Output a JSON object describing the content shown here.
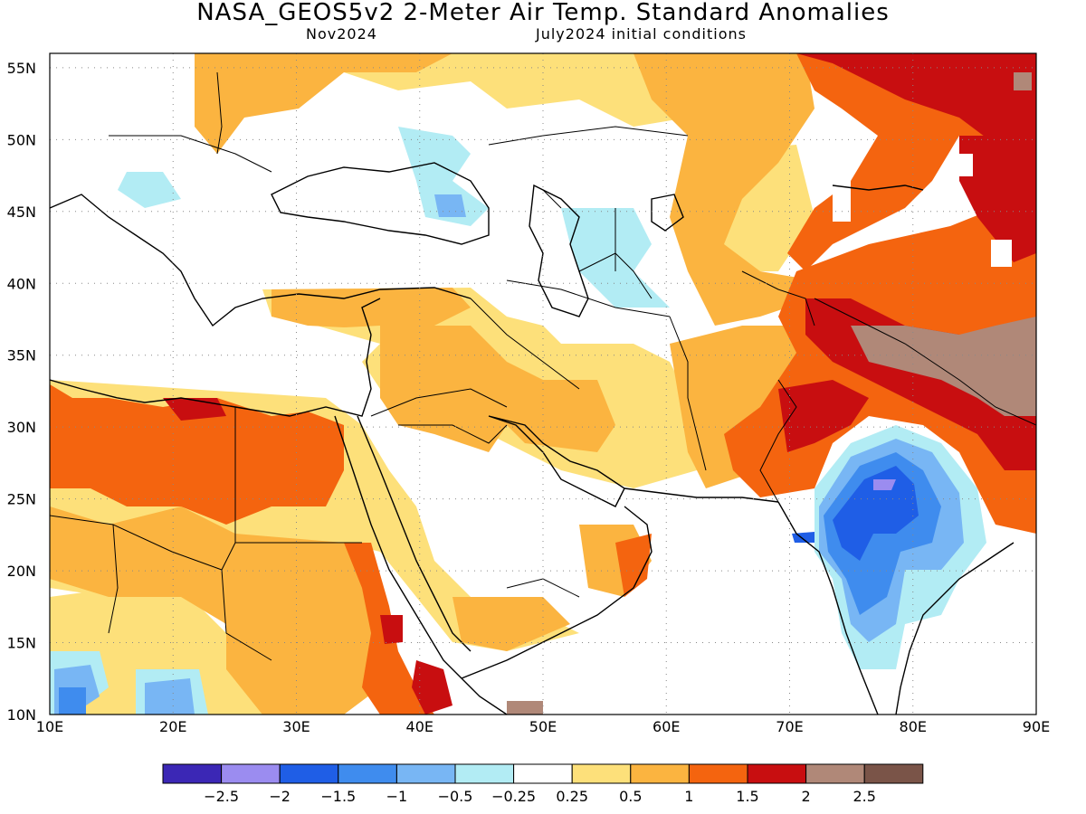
{
  "title": "NASA_GEOS5v2 2-Meter Air Temp. Standard Anomalies",
  "subtitle_left": "Nov2024",
  "subtitle_right": "July2024 initial conditions",
  "map": {
    "lon_range": [
      10,
      90
    ],
    "lat_range": [
      10,
      56
    ],
    "lon_ticks": [
      {
        "value": 10,
        "label": "10E"
      },
      {
        "value": 20,
        "label": "20E"
      },
      {
        "value": 30,
        "label": "30E"
      },
      {
        "value": 40,
        "label": "40E"
      },
      {
        "value": 50,
        "label": "50E"
      },
      {
        "value": 60,
        "label": "60E"
      },
      {
        "value": 70,
        "label": "70E"
      },
      {
        "value": 80,
        "label": "80E"
      },
      {
        "value": 90,
        "label": "90E"
      }
    ],
    "lat_ticks": [
      {
        "value": 10,
        "label": "10N"
      },
      {
        "value": 15,
        "label": "15N"
      },
      {
        "value": 20,
        "label": "20N"
      },
      {
        "value": 25,
        "label": "25N"
      },
      {
        "value": 30,
        "label": "30N"
      },
      {
        "value": 35,
        "label": "35N"
      },
      {
        "value": 40,
        "label": "40N"
      },
      {
        "value": 45,
        "label": "45N"
      },
      {
        "value": 50,
        "label": "50N"
      },
      {
        "value": 55,
        "label": "55N"
      }
    ],
    "grid_lines": "dotted"
  },
  "legend": {
    "colors": [
      "#3b27b5",
      "#9b8cf0",
      "#1f5ee6",
      "#3f8cee",
      "#78b6f4",
      "#b2ecf4",
      "#ffffff",
      "#fde07a",
      "#fbb440",
      "#f4640f",
      "#c80e10",
      "#b08878",
      "#7a5448"
    ],
    "labels": [
      "−2.5",
      "−2",
      "−1.5",
      "−1",
      "−0.5",
      "−0.25",
      "0.25",
      "0.5",
      "1",
      "1.5",
      "2",
      "2.5"
    ]
  }
}
